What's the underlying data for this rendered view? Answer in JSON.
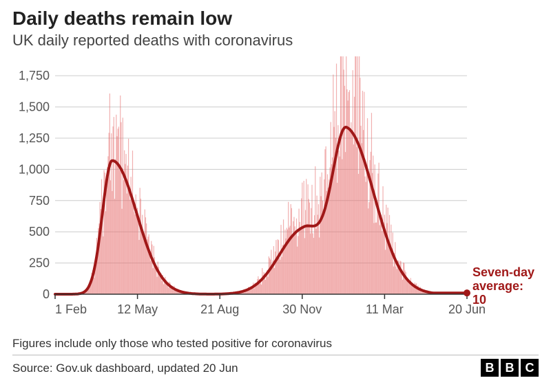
{
  "title": "Daily deaths remain low",
  "subtitle": "UK daily reported deaths with coronavirus",
  "caption": "Figures include only those who tested positive for coronavirus",
  "source": "Source: Gov.uk dashboard, updated 20 Jun",
  "logo": {
    "b1": "B",
    "b2": "B",
    "c": "C"
  },
  "annotation_label": "Seven-day average:",
  "annotation_value": "10",
  "chart": {
    "type": "bar+line",
    "background_color": "#ffffff",
    "grid_color": "#cccccc",
    "axis_color": "#333333",
    "tick_fontsize": 18,
    "tick_color": "#555555",
    "bar_color": "rgba(230,110,110,0.55)",
    "bar_width": 1.0,
    "line_color": "#a01818",
    "line_width": 4,
    "dot_radius": 5,
    "annotation_color": "#a01818",
    "annotation_fontsize": 18,
    "ylim": [
      0,
      1850
    ],
    "ytick_step": 250,
    "ylabels": [
      "0",
      "250",
      "500",
      "750",
      "1,000",
      "1,250",
      "1,500",
      "1,750"
    ],
    "x_n": 506,
    "x_ticks": [
      {
        "i": 0,
        "label": "1 Feb"
      },
      {
        "i": 101,
        "label": "12 May"
      },
      {
        "i": 202,
        "label": "21 Aug"
      },
      {
        "i": 303,
        "label": "30 Nov"
      },
      {
        "i": 404,
        "label": "11 Mar"
      },
      {
        "i": 505,
        "label": "20 Jun"
      }
    ],
    "a1": {
      "start": 40,
      "peak_i": 70,
      "peak_v": 1070,
      "spike_peak": 1220,
      "sigma_l": 12,
      "sigma_r": 30
    },
    "a2a": {
      "start": 240,
      "peak_i": 305,
      "peak_v": 520,
      "spike_peak": 700,
      "sigma_l": 30,
      "sigma_r": 20
    },
    "a2b": {
      "start": 310,
      "peak_i": 357,
      "peak_v": 1320,
      "spike_peak": 1830,
      "sigma_l": 18,
      "sigma_r": 34
    },
    "tail_value": 10
  }
}
